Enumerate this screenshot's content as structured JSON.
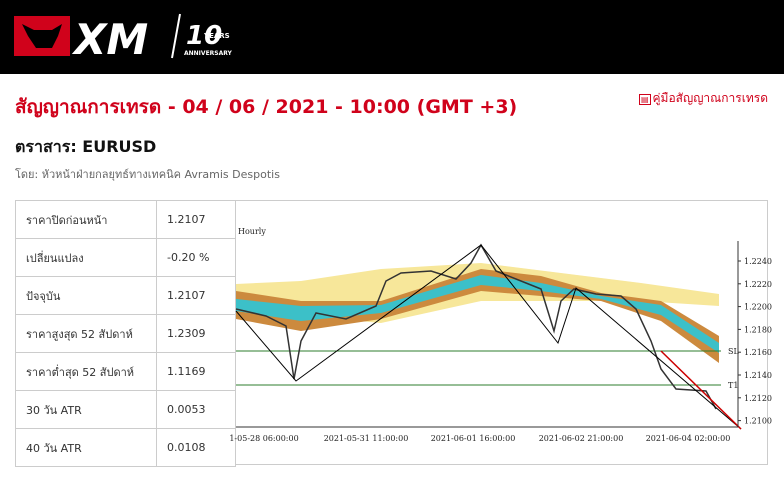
{
  "header": {
    "logo": {
      "brand": "XM",
      "number": "10",
      "years": "YEARS",
      "anniversary": "ANNIVERSARY"
    }
  },
  "page": {
    "title": "สัญญาณการเทรด - 04 / 06 / 2021 - 10:00 (GMT +3)",
    "guide_link": "คู่มือสัญญาณการเทรด",
    "instrument": "ตราสาร: EURUSD",
    "author": "โดย: หัวหน้าฝ่ายกลยุทธ์ทางเทคนิค Avramis Despotis"
  },
  "table": {
    "rows": [
      [
        "ราคาปิดก่อนหน้า",
        "1.2107"
      ],
      [
        "เปลี่ยนแปลง",
        "-0.20 %"
      ],
      [
        "ปัจจุบัน",
        "1.2107"
      ],
      [
        "ราคาสูงสุด 52 สัปดาห์",
        "1.2309"
      ],
      [
        "ราคาต่ำสุด 52 สัปดาห์",
        "1.1169"
      ],
      [
        "30 วัน ATR",
        "0.0053"
      ],
      [
        "40 วัน ATR",
        "0.0108"
      ]
    ]
  },
  "chart_image": {
    "timeframe": "Hourly",
    "y_labels": [
      "1.2240",
      "1.2220",
      "1.2200",
      "1.2180",
      "1.2160",
      "1.2140",
      "1.2120",
      "1.2100"
    ],
    "x_labels": [
      "1-05-28 06:00:00",
      "2021-05-31 11:00:00",
      "2021-06-01 16:00:00",
      "2021-06-02 21:00:00",
      "2021-06-04 02:00:00"
    ],
    "sl_label": "SL",
    "t1_label": "T1"
  }
}
